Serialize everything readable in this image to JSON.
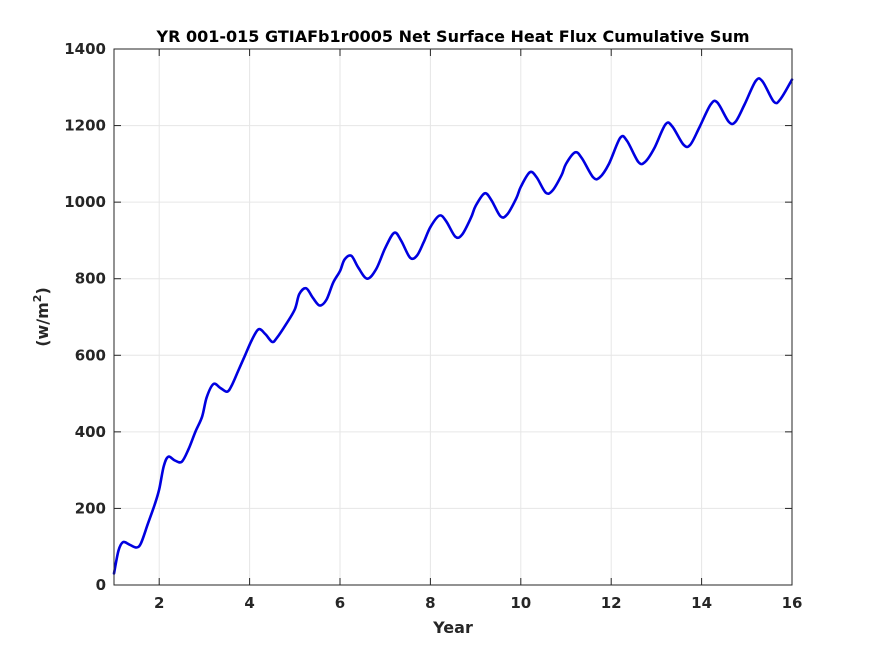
{
  "chart_data": {
    "type": "line",
    "title": "YR 001-015 GTIAFb1r0005 Net Surface Heat Flux  Cumulative Sum",
    "xlabel": "Year",
    "ylabel_base": "(w/m",
    "ylabel_sup": "2",
    "ylabel_close": ")",
    "xlim": [
      1,
      16
    ],
    "ylim": [
      0,
      1400
    ],
    "x_ticks": [
      2,
      4,
      6,
      8,
      10,
      12,
      14,
      16
    ],
    "x_tick_labels": [
      "2",
      "4",
      "6",
      "8",
      "10",
      "12",
      "14",
      "16"
    ],
    "y_ticks": [
      0,
      200,
      400,
      600,
      800,
      1000,
      1200,
      1400
    ],
    "y_tick_labels": [
      "0",
      "200",
      "400",
      "600",
      "800",
      "1000",
      "1200",
      "1400"
    ],
    "grid": true,
    "line_color": "#0000e0",
    "series": [
      {
        "x": [
          1.0,
          1.1,
          1.2,
          1.35,
          1.5,
          1.6,
          1.75,
          1.9,
          2.0,
          2.1,
          2.2,
          2.35,
          2.5,
          2.65,
          2.8,
          2.95,
          3.05,
          3.2,
          3.35,
          3.5,
          3.6,
          3.75,
          3.9,
          4.05,
          4.2,
          4.35,
          4.5,
          4.6,
          4.8,
          5.0,
          5.1,
          5.25,
          5.4,
          5.55,
          5.7,
          5.85,
          6.0,
          6.1,
          6.25,
          6.4,
          6.6,
          6.8,
          7.0,
          7.2,
          7.35,
          7.55,
          7.7,
          7.85,
          8.0,
          8.2,
          8.35,
          8.55,
          8.7,
          8.9,
          9.0,
          9.2,
          9.35,
          9.55,
          9.7,
          9.9,
          10.0,
          10.2,
          10.35,
          10.55,
          10.7,
          10.9,
          11.0,
          11.2,
          11.35,
          11.6,
          11.75,
          11.95,
          12.2,
          12.35,
          12.6,
          12.75,
          12.95,
          13.2,
          13.35,
          13.6,
          13.75,
          13.95,
          14.2,
          14.35,
          14.6,
          14.75,
          14.95,
          15.2,
          15.35,
          15.6,
          15.75,
          16.0
        ],
        "y": [
          30,
          90,
          112,
          105,
          98,
          110,
          160,
          210,
          250,
          310,
          335,
          325,
          322,
          355,
          400,
          440,
          490,
          525,
          515,
          505,
          520,
          560,
          600,
          640,
          668,
          655,
          635,
          645,
          680,
          720,
          760,
          775,
          750,
          730,
          745,
          790,
          820,
          850,
          860,
          830,
          800,
          825,
          880,
          920,
          900,
          855,
          860,
          895,
          935,
          965,
          950,
          910,
          915,
          960,
          990,
          1023,
          1005,
          963,
          968,
          1010,
          1040,
          1078,
          1065,
          1025,
          1030,
          1070,
          1100,
          1130,
          1115,
          1065,
          1065,
          1100,
          1168,
          1160,
          1105,
          1105,
          1140,
          1203,
          1198,
          1150,
          1150,
          1195,
          1255,
          1260,
          1210,
          1210,
          1255,
          1317,
          1315,
          1262,
          1270,
          1320
        ]
      }
    ]
  }
}
